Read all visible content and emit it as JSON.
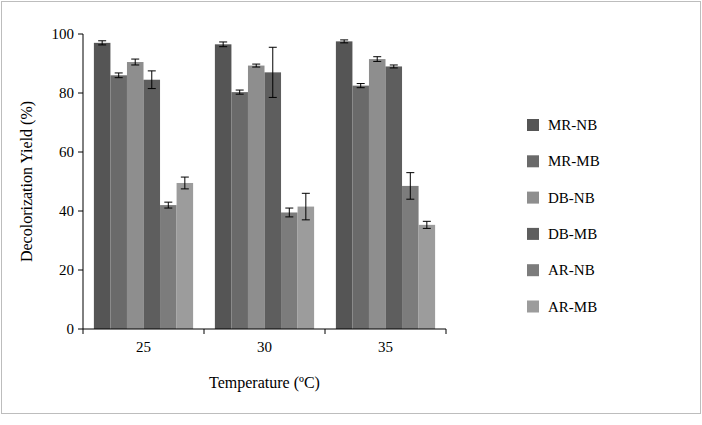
{
  "chart_data": {
    "type": "bar",
    "x_label": "Temperature (ºC)",
    "y_label": "Decolorization Yield (%)",
    "categories": [
      "25",
      "30",
      "35"
    ],
    "series": [
      {
        "name": "MR-NB",
        "color": "#555555",
        "values": [
          97,
          96.5,
          97.5
        ],
        "errors": [
          0.7,
          0.8,
          0.5
        ]
      },
      {
        "name": "MR-MB",
        "color": "#6a6a6a",
        "values": [
          86,
          80.3,
          82.5
        ],
        "errors": [
          0.8,
          0.7,
          0.7
        ]
      },
      {
        "name": "DB-NB",
        "color": "#8e8e8e",
        "values": [
          90.5,
          89.3,
          91.5
        ],
        "errors": [
          1,
          0.5,
          0.8
        ]
      },
      {
        "name": "DB-MB",
        "color": "#5e5e5e",
        "values": [
          84.5,
          87,
          89
        ],
        "errors": [
          3,
          8.5,
          0.5
        ]
      },
      {
        "name": "AR-NB",
        "color": "#7c7c7c",
        "values": [
          42,
          39.5,
          48.5
        ],
        "errors": [
          1,
          1.5,
          4.5
        ]
      },
      {
        "name": "AR-MB",
        "color": "#9c9c9c",
        "values": [
          49.5,
          41.5,
          35.3
        ],
        "errors": [
          2,
          4.5,
          1.2
        ]
      }
    ],
    "ylim": [
      0,
      100
    ],
    "yticks": [
      0,
      20,
      40,
      60,
      80,
      100
    ],
    "grid": false,
    "legend": "right"
  }
}
